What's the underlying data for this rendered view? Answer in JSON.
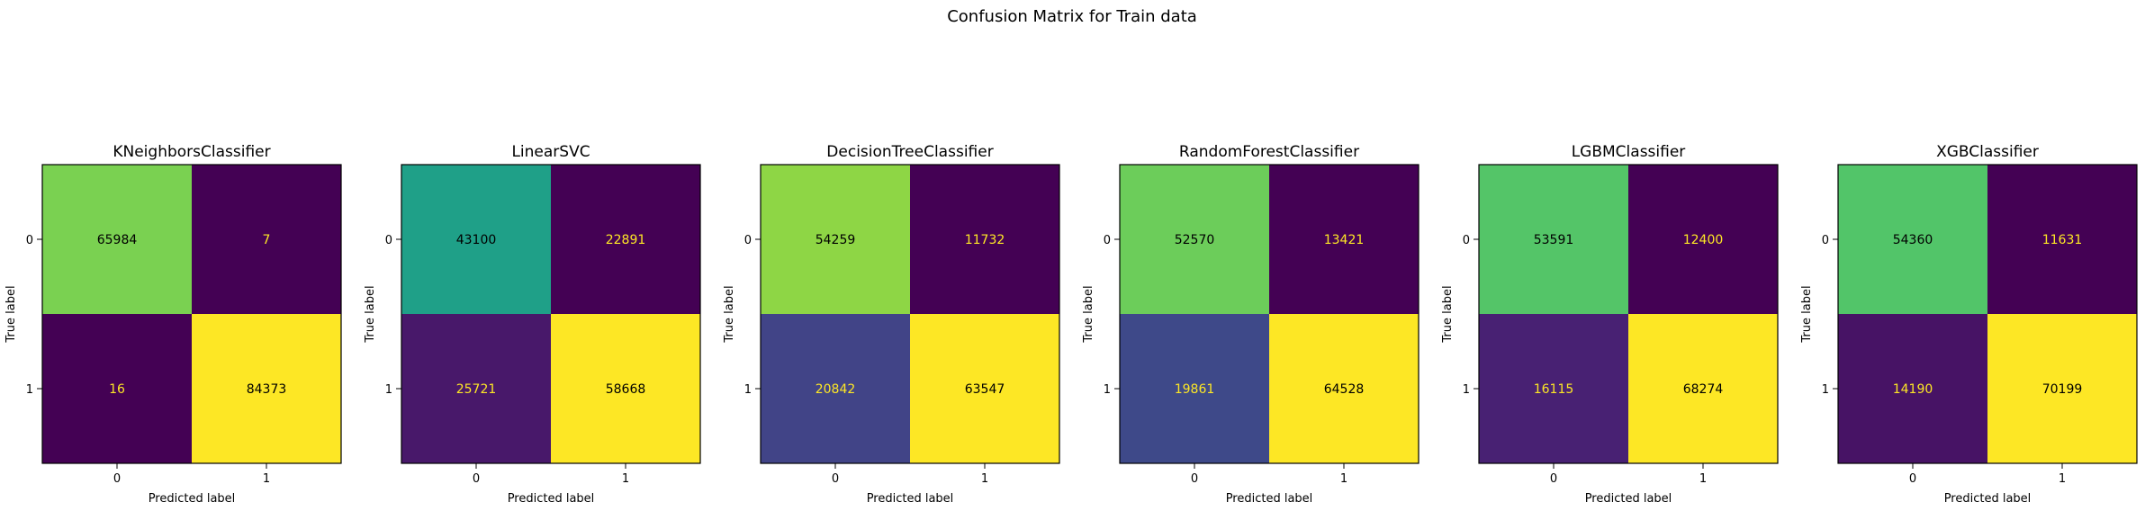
{
  "suptitle": "Confusion Matrix for Train data",
  "chart_data": [
    {
      "type": "heatmap",
      "title": "KNeighborsClassifier",
      "xlabel": "Predicted label",
      "ylabel": "True label",
      "x_ticks": [
        "0",
        "1"
      ],
      "y_ticks": [
        "0",
        "1"
      ],
      "matrix": [
        [
          65984,
          7
        ],
        [
          16,
          84373
        ]
      ],
      "cell_colors": [
        [
          "#7ad151",
          "#440154"
        ],
        [
          "#440154",
          "#fde725"
        ]
      ],
      "text_colors": [
        [
          "#000000",
          "#fde725"
        ],
        [
          "#fde725",
          "#000000"
        ]
      ]
    },
    {
      "type": "heatmap",
      "title": "LinearSVC",
      "xlabel": "Predicted label",
      "ylabel": "True label",
      "x_ticks": [
        "0",
        "1"
      ],
      "y_ticks": [
        "0",
        "1"
      ],
      "matrix": [
        [
          43100,
          22891
        ],
        [
          25721,
          58668
        ]
      ],
      "cell_colors": [
        [
          "#1fa088",
          "#440154"
        ],
        [
          "#48186a",
          "#fde725"
        ]
      ],
      "text_colors": [
        [
          "#000000",
          "#fde725"
        ],
        [
          "#fde725",
          "#000000"
        ]
      ]
    },
    {
      "type": "heatmap",
      "title": "DecisionTreeClassifier",
      "xlabel": "Predicted label",
      "ylabel": "True label",
      "x_ticks": [
        "0",
        "1"
      ],
      "y_ticks": [
        "0",
        "1"
      ],
      "matrix": [
        [
          54259,
          11732
        ],
        [
          20842,
          63547
        ]
      ],
      "cell_colors": [
        [
          "#8ed645",
          "#440154"
        ],
        [
          "#414487",
          "#fde725"
        ]
      ],
      "text_colors": [
        [
          "#000000",
          "#fde725"
        ],
        [
          "#fde725",
          "#000000"
        ]
      ]
    },
    {
      "type": "heatmap",
      "title": "RandomForestClassifier",
      "xlabel": "Predicted label",
      "ylabel": "True label",
      "x_ticks": [
        "0",
        "1"
      ],
      "y_ticks": [
        "0",
        "1"
      ],
      "matrix": [
        [
          52570,
          13421
        ],
        [
          19861,
          64528
        ]
      ],
      "cell_colors": [
        [
          "#6ccd5a",
          "#440154"
        ],
        [
          "#3e4989",
          "#fde725"
        ]
      ],
      "text_colors": [
        [
          "#000000",
          "#fde725"
        ],
        [
          "#fde725",
          "#000000"
        ]
      ]
    },
    {
      "type": "heatmap",
      "title": "LGBMClassifier",
      "xlabel": "Predicted label",
      "ylabel": "True label",
      "x_ticks": [
        "0",
        "1"
      ],
      "y_ticks": [
        "0",
        "1"
      ],
      "matrix": [
        [
          53591,
          12400
        ],
        [
          16115,
          68274
        ]
      ],
      "cell_colors": [
        [
          "#54c568",
          "#440154"
        ],
        [
          "#482173",
          "#fde725"
        ]
      ],
      "text_colors": [
        [
          "#000000",
          "#fde725"
        ],
        [
          "#fde725",
          "#000000"
        ]
      ]
    },
    {
      "type": "heatmap",
      "title": "XGBClassifier",
      "xlabel": "Predicted label",
      "ylabel": "True label",
      "x_ticks": [
        "0",
        "1"
      ],
      "y_ticks": [
        "0",
        "1"
      ],
      "matrix": [
        [
          54360,
          11631
        ],
        [
          14190,
          70199
        ]
      ],
      "cell_colors": [
        [
          "#52c569",
          "#440154"
        ],
        [
          "#471365",
          "#fde725"
        ]
      ],
      "text_colors": [
        [
          "#000000",
          "#fde725"
        ],
        [
          "#fde725",
          "#000000"
        ]
      ]
    }
  ]
}
